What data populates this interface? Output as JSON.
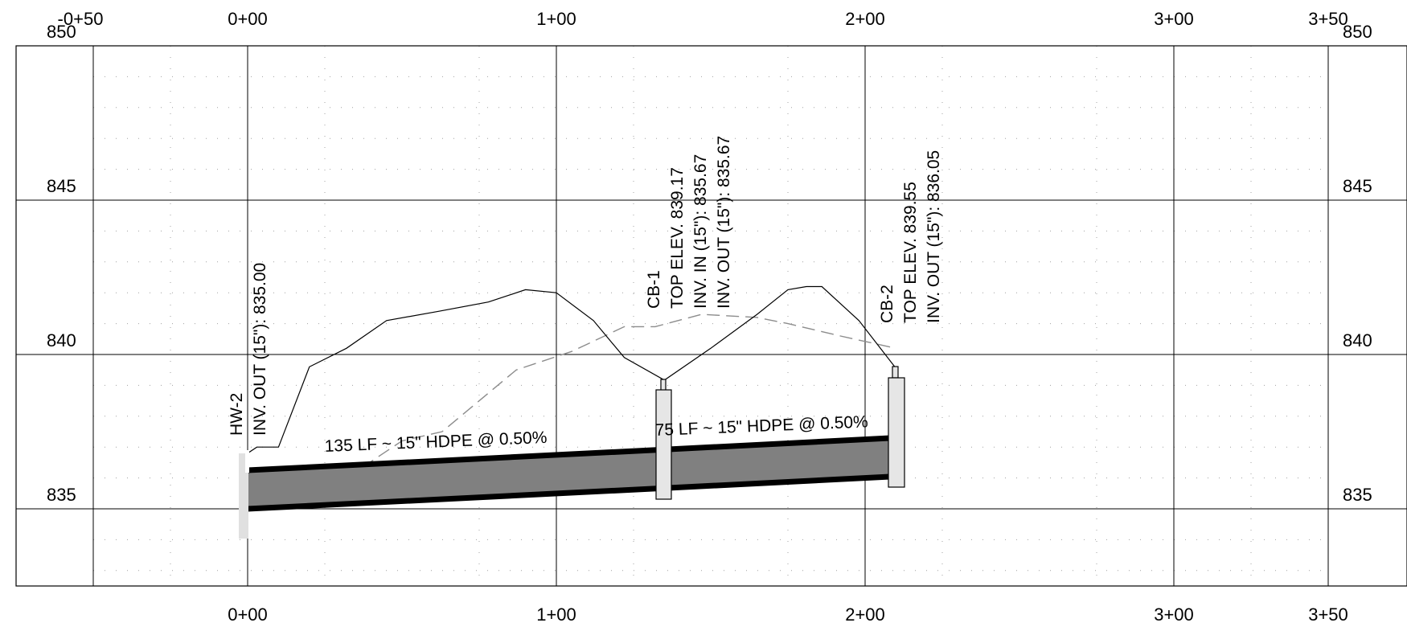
{
  "profile": {
    "stations_top": [
      "-0+50",
      "0+00",
      "1+00",
      "2+00",
      "3+00",
      "3+50"
    ],
    "stations_bottom": [
      "0+00",
      "1+00",
      "2+00",
      "3+00",
      "3+50"
    ],
    "elev_left": [
      "850",
      "845",
      "840",
      "835"
    ],
    "elev_right": [
      "850",
      "845",
      "840",
      "835"
    ],
    "station_range": [
      -50,
      350
    ],
    "elevation_range": [
      832.5,
      850
    ],
    "structures": [
      {
        "id": "hw2",
        "station": 0,
        "lines": [
          "HW-2",
          "INV. OUT (15\"): 835.00"
        ]
      },
      {
        "id": "cb1",
        "station": 135,
        "lines": [
          "CB-1",
          "TOP ELEV. 839.17",
          "INV. IN (15\"): 835.67",
          "INV. OUT (15\"): 835.67"
        ]
      },
      {
        "id": "cb2",
        "station": 210,
        "lines": [
          "CB-2",
          "TOP ELEV. 839.55",
          "INV. OUT (15\"): 836.05"
        ]
      }
    ],
    "pipes": [
      {
        "id": "pipe-1",
        "from_station": 0,
        "to_station": 135,
        "inv_start": 835.0,
        "inv_end": 835.67,
        "label": "135 LF ~ 15\" HDPE @ 0.50%"
      },
      {
        "id": "pipe-2",
        "from_station": 135,
        "to_station": 210,
        "inv_start": 835.67,
        "inv_end": 836.05,
        "label": "75 LF ~ 15\" HDPE @ 0.50%"
      }
    ],
    "proposed_grade": [
      [
        0,
        836.8
      ],
      [
        3,
        837.0
      ],
      [
        10,
        837.0
      ],
      [
        20,
        839.6
      ],
      [
        32,
        840.2
      ],
      [
        45,
        841.1
      ],
      [
        62,
        841.4
      ],
      [
        78,
        841.7
      ],
      [
        90,
        842.1
      ],
      [
        100,
        842.0
      ],
      [
        112,
        841.1
      ],
      [
        122,
        839.9
      ],
      [
        135,
        839.17
      ],
      [
        150,
        840.2
      ],
      [
        165,
        841.3
      ],
      [
        175,
        842.1
      ],
      [
        181,
        842.2
      ],
      [
        186,
        842.2
      ],
      [
        198,
        841.1
      ],
      [
        210,
        839.55
      ]
    ],
    "existing_grade": [
      [
        32,
        836.0
      ],
      [
        50,
        837.2
      ],
      [
        63,
        837.5
      ],
      [
        87,
        839.5
      ],
      [
        105,
        840.1
      ],
      [
        122,
        840.9
      ],
      [
        132,
        840.9
      ],
      [
        147,
        841.3
      ],
      [
        165,
        841.2
      ],
      [
        175,
        841.0
      ],
      [
        192,
        840.6
      ],
      [
        210,
        840.2
      ]
    ],
    "colors": {
      "pipe_fill": "#808080",
      "structure_fill": "#e6e6e6",
      "existing_grade": "#8c8c8c"
    }
  }
}
